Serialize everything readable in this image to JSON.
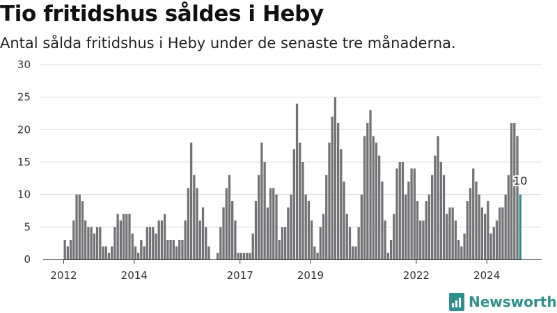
{
  "title": "Tio fritidshus såldes i Heby",
  "subtitle": "Antal sålda fritidshus i Heby under de senaste tre månaderna.",
  "brand": {
    "name": "Newsworthy",
    "icon": "newsworthy-logo-icon"
  },
  "colors": {
    "bar": "#737276",
    "highlight": "#2a9089",
    "grid": "#dcdcdc",
    "brand": "#2f8f8c"
  },
  "chart_data": {
    "type": "bar",
    "title": "Tio fritidshus såldes i Heby",
    "subtitle": "Antal sålda fritidshus i Heby under de senaste tre månaderna.",
    "start": "2012-01",
    "frequency": "monthly",
    "ylim": [
      0,
      30
    ],
    "yticks": [
      0,
      5,
      10,
      15,
      20,
      25,
      30
    ],
    "xticks": [
      {
        "label": "2012",
        "date": "2012-01"
      },
      {
        "label": "2014",
        "date": "2014-01"
      },
      {
        "label": "2017",
        "date": "2017-01"
      },
      {
        "label": "2019",
        "date": "2019-01"
      },
      {
        "label": "2022",
        "date": "2022-01"
      },
      {
        "label": "2024",
        "date": "2024-01"
      }
    ],
    "grid": true,
    "values": [
      3,
      2,
      3,
      6,
      10,
      10,
      9,
      6,
      5,
      5,
      4,
      5,
      5,
      2,
      2,
      1,
      2,
      5,
      7,
      6,
      7,
      7,
      7,
      4,
      2,
      1,
      3,
      2,
      5,
      5,
      5,
      4,
      6,
      6,
      7,
      3,
      3,
      3,
      2,
      3,
      3,
      6,
      11,
      18,
      13,
      11,
      6,
      8,
      5,
      2,
      0,
      0,
      1,
      5,
      8,
      11,
      13,
      9,
      6,
      1,
      1,
      1,
      1,
      1,
      4,
      9,
      13,
      18,
      15,
      8,
      11,
      11,
      10,
      3,
      5,
      5,
      8,
      10,
      17,
      24,
      18,
      15,
      10,
      9,
      6,
      2,
      1,
      5,
      7,
      13,
      18,
      22,
      25,
      21,
      17,
      12,
      7,
      5,
      2,
      2,
      5,
      10,
      19,
      21,
      23,
      19,
      18,
      16,
      12,
      6,
      1,
      3,
      7,
      14,
      15,
      15,
      10,
      12,
      14,
      14,
      9,
      6,
      6,
      9,
      10,
      13,
      16,
      19,
      15,
      13,
      7,
      8,
      8,
      6,
      3,
      2,
      4,
      9,
      11,
      14,
      12,
      10,
      8,
      7,
      9,
      4,
      5,
      6,
      8,
      8,
      10,
      13,
      21,
      21,
      19,
      10
    ],
    "highlight": {
      "index": 155,
      "value": 10,
      "label": "10"
    }
  }
}
